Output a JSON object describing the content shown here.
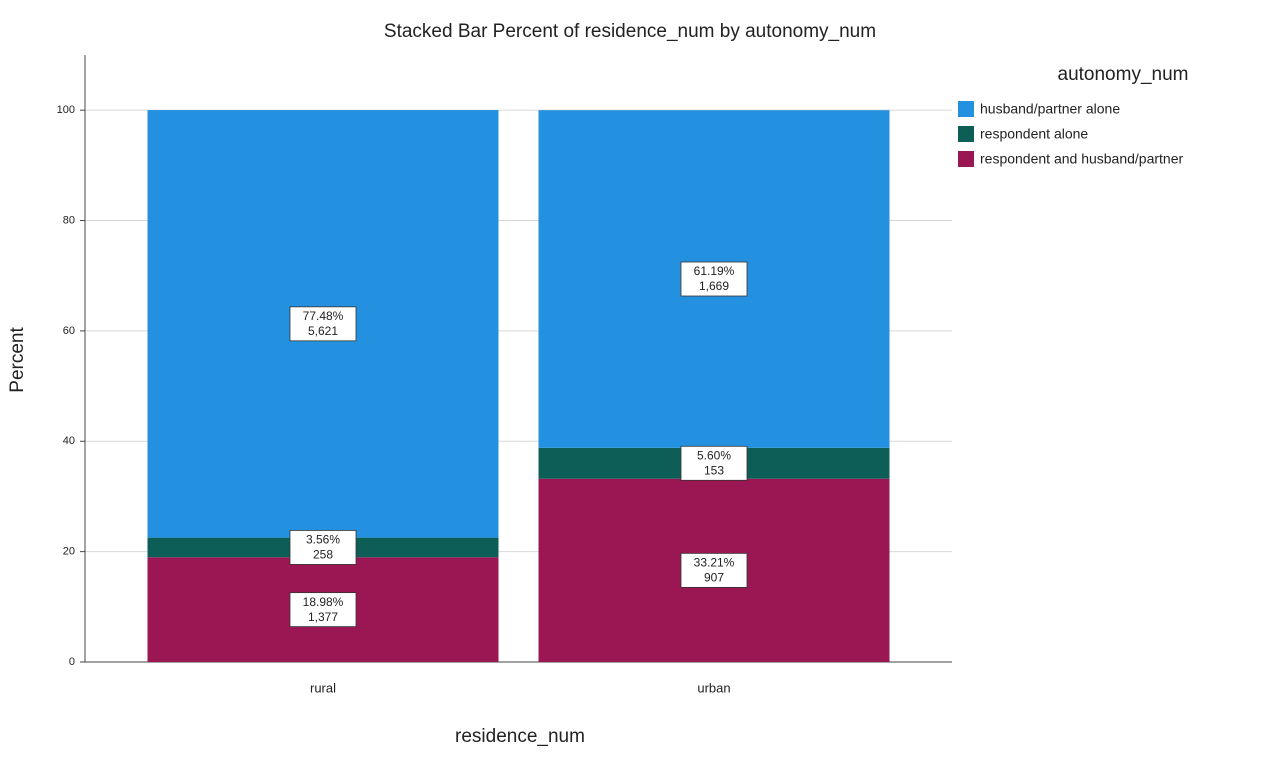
{
  "chart_data": {
    "type": "stacked_bar_percent",
    "title": "Stacked Bar Percent of residence_num by autonomy_num",
    "x_label": "residence_num",
    "y_label": "Percent",
    "legend_title": "autonomy_num",
    "categories": [
      "rural",
      "urban"
    ],
    "ylim": [
      0,
      110
    ],
    "yticks": [
      0,
      20,
      40,
      60,
      80,
      100
    ],
    "grid": true,
    "series": [
      {
        "name": "respondent and husband/partner",
        "color": "#9b1753",
        "values": [
          18.98,
          33.21
        ],
        "value_labels": [
          "18.98%",
          "33.21%"
        ],
        "counts": [
          1377,
          907
        ],
        "count_labels": [
          "1,377",
          "907"
        ]
      },
      {
        "name": "respondent alone",
        "color": "#0e5e58",
        "values": [
          3.56,
          5.6
        ],
        "value_labels": [
          "3.56%",
          "5.60%"
        ],
        "counts": [
          258,
          153
        ],
        "count_labels": [
          "258",
          "153"
        ]
      },
      {
        "name": "husband/partner alone",
        "color": "#2391e0",
        "values": [
          77.48,
          61.19
        ],
        "value_labels": [
          "77.48%",
          "61.19%"
        ],
        "counts": [
          5621,
          1669
        ],
        "count_labels": [
          "5,621",
          "1,669"
        ]
      }
    ]
  }
}
